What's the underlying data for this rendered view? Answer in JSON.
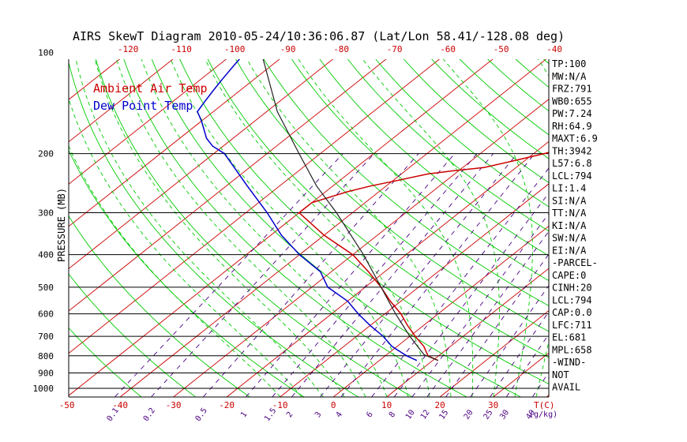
{
  "title": "AIRS SkewT Diagram 2010-05-24/10:36:06.87 (Lat/Lon 58.41/-128.08 deg)",
  "colors": {
    "temp": "#cc0000",
    "dew": "#0000cc",
    "isotherm": "#cc0000",
    "dry_adiabat": "#00cc00",
    "moist_adiabat": "#00cc00",
    "mixing_ratio": "#4b0082",
    "isobar": "#000000"
  },
  "chart_data": {
    "type": "line",
    "title": "AIRS SkewT Diagram 2010-05-24/10:36:06.87 (Lat/Lon 58.41/-128.08 deg)",
    "ylabel": "PRESSURE (MB)",
    "xlabel": "T(C)",
    "mixing_ratio_unit": "(g/kg)",
    "y_scale": "log",
    "ylim": [
      1050,
      100
    ],
    "pressure_ticks": [
      100,
      200,
      300,
      400,
      500,
      600,
      700,
      800,
      900,
      1000
    ],
    "isobars_drawn": [
      200,
      300,
      400,
      500,
      600,
      700,
      800,
      900,
      1000
    ],
    "temp_ticks_top": [
      -120,
      -110,
      -100,
      -90,
      -80,
      -70,
      -60,
      -50,
      -40
    ],
    "temp_ticks_bottom": [
      -50,
      -40,
      -30,
      -20,
      -10,
      0,
      10,
      20,
      30
    ],
    "mixing_ratio_labels": [
      "0.1",
      "0.2",
      "0.5",
      "1",
      "1.5",
      "2",
      "3",
      "4",
      "6",
      "8",
      "10",
      "12",
      "15",
      "20",
      "25",
      "30",
      "40"
    ],
    "legend": [
      "Ambient Air Temp",
      "Dew Point Temp"
    ],
    "legend_position": "top-left",
    "series": [
      {
        "name": "Ambient Air Temp",
        "pressure": [
          826,
          800,
          750,
          700,
          650,
          600,
          550,
          500,
          450,
          400,
          350,
          300,
          280,
          260,
          250,
          240,
          230,
          225,
          220,
          210,
          200,
          190,
          180,
          170,
          160,
          150,
          140,
          130,
          120,
          110,
          100
        ],
        "temp": [
          11,
          8,
          5,
          1,
          -3,
          -7,
          -12,
          -17,
          -23,
          -30,
          -40,
          -50,
          -50,
          -46,
          -43,
          -39,
          -35,
          -31,
          -26,
          -22,
          -18,
          -14,
          -10,
          -7,
          -5,
          -4,
          -3,
          -1,
          0,
          2,
          4
        ]
      },
      {
        "name": "Dew Point Temp",
        "pressure": [
          826,
          800,
          750,
          700,
          650,
          600,
          550,
          500,
          450,
          400,
          350,
          300,
          250,
          200,
          190,
          180,
          160,
          150,
          140,
          130,
          120,
          110,
          100
        ],
        "temp": [
          7,
          4,
          -1,
          -5,
          -10,
          -15,
          -20,
          -27,
          -32,
          -40,
          -48,
          -56,
          -66,
          -78,
          -82,
          -85,
          -90,
          -93,
          -94,
          -95,
          -96,
          -97,
          -98
        ]
      },
      {
        "name": "Parcel",
        "pressure": [
          826,
          794,
          700,
          600,
          500,
          400,
          300,
          250,
          200,
          150,
          100
        ],
        "temp": [
          11,
          7,
          0,
          -8,
          -17,
          -28,
          -43,
          -53,
          -64,
          -78,
          -95
        ]
      }
    ]
  },
  "indices": [
    "TP:100",
    "MW:N/A",
    "FRZ:791",
    "WB0:655",
    "PW:7.24",
    "RH:64.9",
    "MAXT:6.9",
    "TH:3942",
    "L57:6.8",
    "LCL:794",
    "LI:1.4",
    "SI:N/A",
    "TT:N/A",
    "KI:N/A",
    "SW:N/A",
    "EI:N/A",
    "-PARCEL-",
    "CAPE:0",
    "CINH:20",
    "LCL:794",
    "CAP:0.0",
    "LFC:711",
    "EL:681",
    "MPL:658",
    "-WIND-",
    "NOT",
    "AVAIL"
  ]
}
